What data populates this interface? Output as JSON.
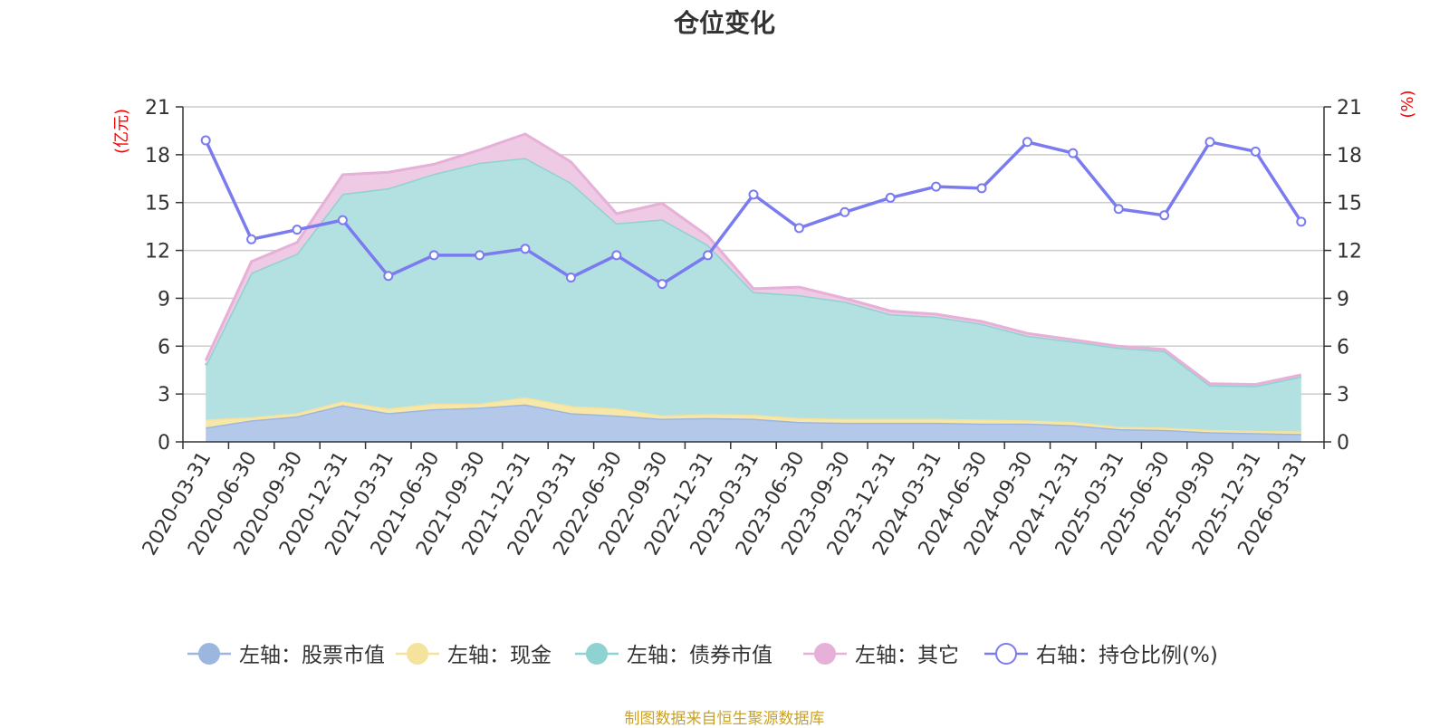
{
  "chart_data": {
    "type": "area",
    "title": "仓位变化",
    "source_note": "制图数据来自恒生聚源数据库",
    "left_axis": {
      "unit": "(亿元)",
      "range": [
        0,
        21
      ],
      "ticks": [
        "0",
        "3",
        "6",
        "9",
        "12",
        "15",
        "18",
        "21"
      ]
    },
    "right_axis": {
      "unit": "(%)",
      "range": [
        0,
        21
      ],
      "ticks": [
        "0",
        "3",
        "6",
        "9",
        "12",
        "15",
        "18",
        "21"
      ]
    },
    "categories": [
      "2020-03-31",
      "2020-06-30",
      "2020-09-30",
      "2020-12-31",
      "2021-03-31",
      "2021-06-30",
      "2021-09-30",
      "2021-12-31",
      "2022-03-31",
      "2022-06-30",
      "2022-09-30",
      "2022-12-31",
      "2023-03-31",
      "2023-06-30",
      "2023-09-30",
      "2023-12-31",
      "2024-03-31",
      "2024-06-30",
      "2024-09-30",
      "2024-12-31",
      "2025-03-31",
      "2025-06-30",
      "2025-09-30",
      "2025-12-31",
      "2026-03-31"
    ],
    "stacked_series": [
      {
        "name": "左轴：股票市值",
        "color": "#9bb7e0",
        "fill": "#b4c9ea",
        "values": [
          0.9,
          1.35,
          1.6,
          2.3,
          1.8,
          2.05,
          2.15,
          2.35,
          1.8,
          1.65,
          1.45,
          1.5,
          1.45,
          1.25,
          1.2,
          1.2,
          1.2,
          1.15,
          1.15,
          1.05,
          0.8,
          0.75,
          0.6,
          0.55,
          0.5
        ]
      },
      {
        "name": "左轴：现金",
        "color": "#f5e29c",
        "fill": "#f7e7a8",
        "values": [
          0.5,
          0.2,
          0.2,
          0.25,
          0.3,
          0.35,
          0.25,
          0.45,
          0.45,
          0.45,
          0.2,
          0.25,
          0.25,
          0.25,
          0.25,
          0.25,
          0.25,
          0.25,
          0.2,
          0.2,
          0.15,
          0.15,
          0.15,
          0.15,
          0.15
        ]
      },
      {
        "name": "左轴：债券市值",
        "color": "#8fd2d2",
        "fill": "#b3e0e0",
        "values": [
          3.4,
          9.05,
          10.0,
          13.0,
          13.8,
          14.4,
          15.1,
          15.0,
          14.0,
          11.6,
          12.3,
          10.6,
          7.7,
          7.7,
          7.35,
          6.55,
          6.4,
          6.0,
          5.3,
          5.05,
          4.95,
          4.8,
          2.8,
          2.8,
          3.45
        ]
      },
      {
        "name": "左轴：其它",
        "color": "#e6b0d8",
        "fill": "#efcae4",
        "values": [
          0.3,
          0.7,
          0.7,
          1.2,
          1.0,
          0.6,
          0.8,
          1.5,
          1.3,
          0.6,
          1.0,
          0.55,
          0.2,
          0.5,
          0.2,
          0.2,
          0.15,
          0.15,
          0.15,
          0.1,
          0.1,
          0.1,
          0.1,
          0.1,
          0.1
        ]
      }
    ],
    "line_series": {
      "name": "右轴：持仓比例(%)",
      "color": "#7b7bf0",
      "values": [
        18.9,
        12.7,
        13.3,
        13.9,
        10.4,
        11.7,
        11.7,
        12.1,
        10.3,
        11.7,
        9.9,
        11.7,
        15.5,
        13.4,
        14.4,
        15.3,
        16.0,
        15.9,
        18.8,
        18.1,
        14.6,
        14.2,
        18.8,
        18.2,
        13.8
      ]
    }
  }
}
